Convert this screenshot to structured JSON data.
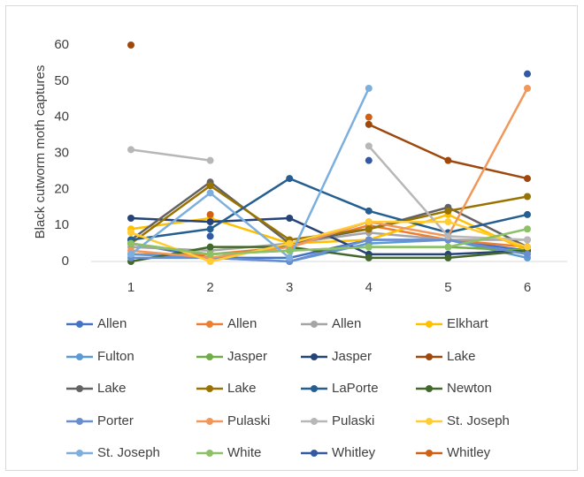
{
  "chart_data": {
    "type": "line",
    "y_label": "Black cutworm moth captures",
    "categories": [
      1,
      2,
      3,
      4,
      5,
      6
    ],
    "ylim": [
      0,
      60
    ],
    "yticks": [
      0,
      10,
      20,
      30,
      40,
      50,
      60
    ],
    "series": [
      {
        "name": "Allen",
        "color": "#4472C4",
        "values": [
          5,
          1,
          1,
          6,
          6,
          3
        ]
      },
      {
        "name": "Allen",
        "color": "#ED7D31",
        "values": [
          2,
          2,
          4,
          10,
          6,
          4
        ]
      },
      {
        "name": "Allen",
        "color": "#A5A5A5",
        "values": [
          4,
          3,
          5,
          8,
          6,
          6
        ]
      },
      {
        "name": "Elkhart",
        "color": "#FFC000",
        "values": [
          9,
          12,
          5,
          6,
          13,
          3
        ]
      },
      {
        "name": "Fulton",
        "color": "#5B9BD5",
        "values": [
          2,
          1,
          0,
          5,
          6,
          1
        ]
      },
      {
        "name": "Jasper",
        "color": "#70AD47",
        "values": [
          5,
          2,
          3,
          4,
          4,
          3
        ]
      },
      {
        "name": "Jasper",
        "color": "#264478",
        "values": [
          12,
          11,
          12,
          2,
          2,
          3
        ]
      },
      {
        "name": "Lake",
        "color": "#9E480E",
        "values": [
          60,
          null,
          null,
          38,
          28,
          23
        ]
      },
      {
        "name": "Lake",
        "color": "#636363",
        "values": [
          6,
          22,
          5,
          9,
          15,
          4
        ]
      },
      {
        "name": "Lake",
        "color": "#997300",
        "values": [
          5,
          21,
          6,
          9,
          14,
          18
        ]
      },
      {
        "name": "LaPorte",
        "color": "#255E91",
        "values": [
          6,
          9,
          23,
          14,
          8,
          13
        ]
      },
      {
        "name": "Newton",
        "color": "#43682B",
        "values": [
          0,
          4,
          4,
          1,
          1,
          3
        ]
      },
      {
        "name": "Porter",
        "color": "#698ED0",
        "values": [
          1,
          1,
          0,
          6,
          6,
          2
        ]
      },
      {
        "name": "Pulaski",
        "color": "#F1975A",
        "values": [
          3,
          1,
          4,
          11,
          7,
          48
        ]
      },
      {
        "name": "Pulaski",
        "color": "#B7B7B7",
        "values": [
          31,
          28,
          null,
          32,
          7,
          6
        ]
      },
      {
        "name": "St. Joseph",
        "color": "#FFCD33",
        "values": [
          8,
          0,
          5,
          11,
          11,
          4
        ]
      },
      {
        "name": "St. Joseph",
        "color": "#7CAFDD",
        "values": [
          2,
          19,
          1,
          48,
          null,
          null
        ]
      },
      {
        "name": "White",
        "color": "#8CC168",
        "values": [
          5,
          2,
          3,
          4,
          4,
          9
        ]
      },
      {
        "name": "Whitley",
        "color": "#335AA1",
        "values": [
          null,
          7,
          null,
          28,
          null,
          52
        ]
      },
      {
        "name": "Whitley",
        "color": "#D26012",
        "values": [
          null,
          13,
          null,
          40,
          null,
          null
        ]
      }
    ]
  }
}
